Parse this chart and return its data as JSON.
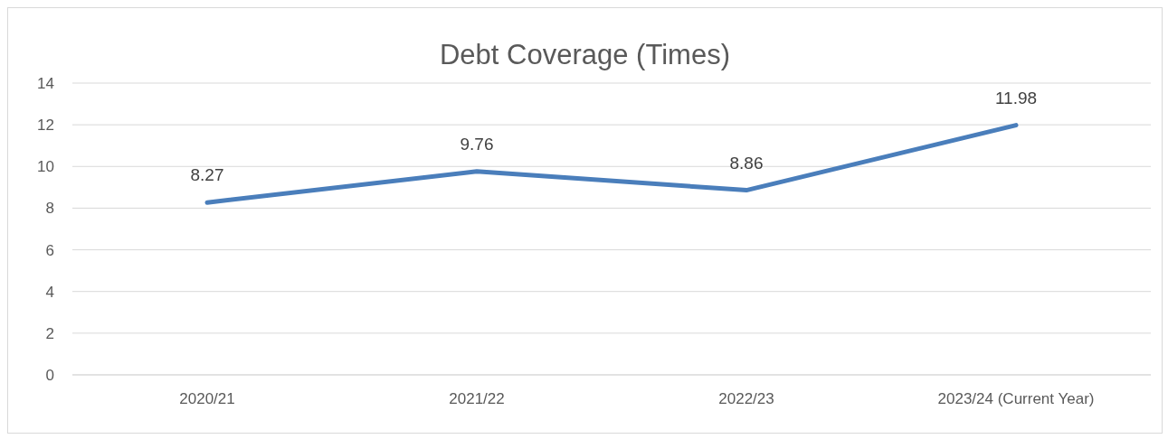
{
  "chart_data": {
    "type": "line",
    "title": "Debt Coverage (Times)",
    "categories": [
      "2020/21",
      "2021/22",
      "2022/23",
      "2023/24 (Current Year)"
    ],
    "series": [
      {
        "color": "#4a7ebb",
        "values": [
          8.27,
          9.76,
          8.86,
          11.98
        ]
      }
    ],
    "ylim": [
      0,
      14
    ],
    "yticks": [
      0,
      2,
      4,
      6,
      8,
      10,
      12,
      14
    ],
    "grid": "y",
    "legend": false,
    "marker": "none",
    "line_style": "solid",
    "data_labels": true
  }
}
